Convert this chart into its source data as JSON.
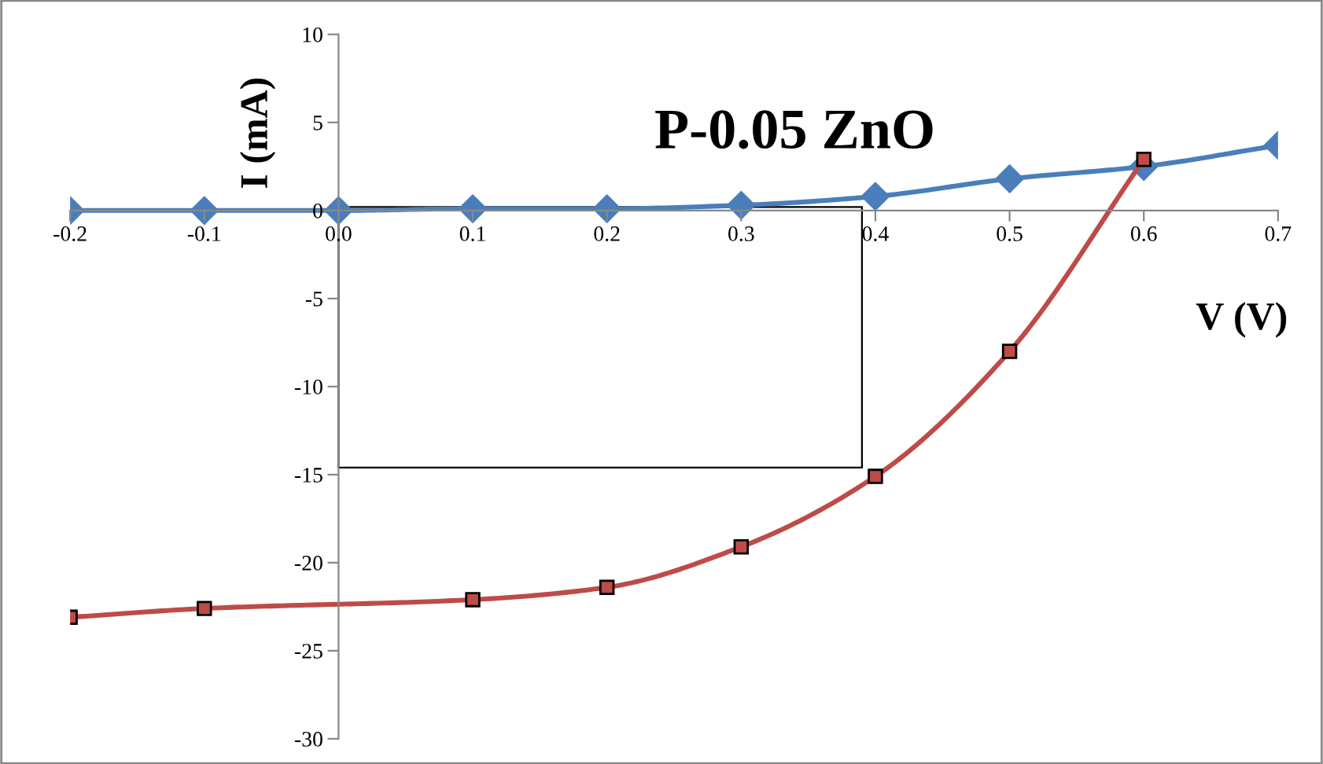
{
  "chart_data": {
    "type": "line",
    "title": "P-0.05 ZnO",
    "xlabel": "V (V)",
    "ylabel": "I (mA)",
    "xlim": [
      -0.2,
      0.7
    ],
    "xticks": [
      -0.2,
      -0.1,
      {
        "value": 0,
        "label": "0.0"
      },
      0.1,
      0.2,
      0.3,
      0.4,
      0.5,
      0.6,
      0.7
    ],
    "ylim": [
      -30,
      10
    ],
    "yticks": [
      -30,
      -25,
      -20,
      -15,
      -10,
      -5,
      0,
      5,
      10
    ],
    "grid": false,
    "legend": false,
    "series": [
      {
        "color": "#4a7ebb",
        "marker": "diamond",
        "x": [
          -0.2,
          -0.1,
          0.0,
          0.1,
          0.2,
          0.3,
          0.4,
          0.5,
          0.6,
          0.7
        ],
        "values": [
          0,
          0,
          0,
          0.1,
          0.1,
          0.3,
          0.8,
          1.8,
          2.5,
          3.7
        ]
      },
      {
        "color": "#be4b48",
        "marker": "square",
        "x": [
          -0.2,
          -0.1,
          0.1,
          0.2,
          0.3,
          0.4,
          0.5,
          0.6
        ],
        "values": [
          -23.1,
          -22.6,
          -22.1,
          -21.4,
          -19.1,
          -15.1,
          -8.0,
          2.9
        ]
      }
    ]
  }
}
